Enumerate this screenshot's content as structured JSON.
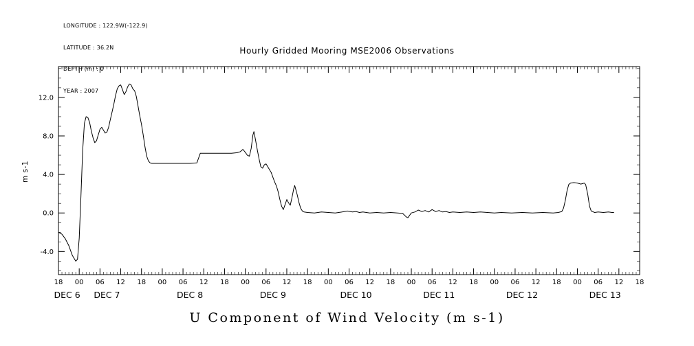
{
  "header": {
    "meta_lines": [
      "LONGITUDE : 122.9W(-122.9)",
      "LATITUDE : 36.2N",
      "DEPTH (m) : 0",
      "YEAR : 2007"
    ],
    "title": "Hourly Gridded Mooring MSE2006 Observations"
  },
  "colors": {
    "line": "#000000",
    "axis": "#000000",
    "background": "#ffffff"
  },
  "chart_data": {
    "type": "line",
    "title": "Hourly Gridded Mooring MSE2006 Observations",
    "xlabel": "U Component of Wind Velocity (m s-1)",
    "ylabel": "m s-1",
    "grid": false,
    "legend": "none",
    "ylim": [
      -6.4,
      15.2
    ],
    "yticks": [
      -4,
      0,
      4,
      8,
      12
    ],
    "ytick_labels": [
      "-4.0",
      "0.0",
      "4.0",
      "8.0",
      "12.0"
    ],
    "y_minor_tick_interval": 1,
    "x_range_hours": [
      0,
      168
    ],
    "x_tick_interval_hours": 6,
    "x_minor_tick_interval_hours": 1,
    "hour_tick_labels": [
      "18",
      "00",
      "06",
      "12",
      "18",
      "00",
      "06",
      "12",
      "18",
      "00",
      "06",
      "12",
      "18",
      "00",
      "06",
      "12",
      "18",
      "00",
      "06",
      "12",
      "18",
      "00",
      "06",
      "12",
      "18",
      "00",
      "06",
      "12",
      "18"
    ],
    "day_labels": [
      {
        "label": "DEC 6",
        "t": 2.5
      },
      {
        "label": "DEC 7",
        "t": 14
      },
      {
        "label": "DEC 8",
        "t": 38
      },
      {
        "label": "DEC 9",
        "t": 62
      },
      {
        "label": "DEC 10",
        "t": 86
      },
      {
        "label": "DEC 11",
        "t": 110
      },
      {
        "label": "DEC 12",
        "t": 134
      },
      {
        "label": "DEC 13",
        "t": 158
      }
    ],
    "series": [
      {
        "name": "U component of wind velocity (m s-1)",
        "points": [
          [
            0,
            -2.0
          ],
          [
            1,
            -2.2
          ],
          [
            2,
            -2.7
          ],
          [
            3,
            -3.4
          ],
          [
            4,
            -4.4
          ],
          [
            5,
            -5.0
          ],
          [
            5.5,
            -4.8
          ],
          [
            6,
            -2.6
          ],
          [
            6.5,
            1.8
          ],
          [
            7,
            6.5
          ],
          [
            7.5,
            9.3
          ],
          [
            8,
            10.0
          ],
          [
            8.5,
            9.9
          ],
          [
            9,
            9.4
          ],
          [
            9.5,
            8.5
          ],
          [
            10,
            7.8
          ],
          [
            10.5,
            7.3
          ],
          [
            11,
            7.5
          ],
          [
            11.5,
            8.1
          ],
          [
            12,
            8.7
          ],
          [
            12.5,
            8.9
          ],
          [
            13,
            8.6
          ],
          [
            13.5,
            8.3
          ],
          [
            14,
            8.4
          ],
          [
            14.5,
            8.9
          ],
          [
            15,
            9.7
          ],
          [
            15.5,
            10.5
          ],
          [
            16,
            11.3
          ],
          [
            16.5,
            12.2
          ],
          [
            17,
            12.9
          ],
          [
            17.5,
            13.2
          ],
          [
            18,
            13.3
          ],
          [
            18.5,
            12.8
          ],
          [
            19,
            12.3
          ],
          [
            19.5,
            12.6
          ],
          [
            20,
            13.1
          ],
          [
            20.5,
            13.4
          ],
          [
            21,
            13.3
          ],
          [
            21.5,
            12.9
          ],
          [
            22,
            12.7
          ],
          [
            22.5,
            12.1
          ],
          [
            23,
            11.1
          ],
          [
            23.5,
            10.1
          ],
          [
            24,
            9.2
          ],
          [
            24.5,
            8.1
          ],
          [
            25,
            6.9
          ],
          [
            25.5,
            5.9
          ],
          [
            26,
            5.4
          ],
          [
            26.5,
            5.2
          ],
          [
            27,
            5.15
          ],
          [
            30,
            5.15
          ],
          [
            34,
            5.15
          ],
          [
            38,
            5.15
          ],
          [
            40,
            5.2
          ],
          [
            40.5,
            5.7
          ],
          [
            41,
            6.2
          ],
          [
            42,
            6.2
          ],
          [
            46,
            6.2
          ],
          [
            50,
            6.2
          ],
          [
            51.5,
            6.25
          ],
          [
            52.5,
            6.35
          ],
          [
            53.3,
            6.6
          ],
          [
            54,
            6.3
          ],
          [
            54.6,
            6.0
          ],
          [
            55.2,
            5.9
          ],
          [
            55.7,
            6.7
          ],
          [
            56.2,
            8.1
          ],
          [
            56.5,
            8.45
          ],
          [
            57,
            7.5
          ],
          [
            57.5,
            6.5
          ],
          [
            58,
            5.6
          ],
          [
            58.5,
            4.8
          ],
          [
            59,
            4.65
          ],
          [
            59.5,
            5.0
          ],
          [
            60,
            5.1
          ],
          [
            60.5,
            4.8
          ],
          [
            61,
            4.5
          ],
          [
            61.5,
            4.2
          ],
          [
            62,
            3.7
          ],
          [
            62.5,
            3.2
          ],
          [
            63,
            2.8
          ],
          [
            63.5,
            2.2
          ],
          [
            64,
            1.4
          ],
          [
            64.5,
            0.7
          ],
          [
            65,
            0.35
          ],
          [
            65.5,
            0.85
          ],
          [
            66,
            1.4
          ],
          [
            66.5,
            1.05
          ],
          [
            67,
            0.8
          ],
          [
            67.5,
            1.6
          ],
          [
            68,
            2.5
          ],
          [
            68.3,
            2.85
          ],
          [
            69,
            1.9
          ],
          [
            69.5,
            1.1
          ],
          [
            70,
            0.5
          ],
          [
            70.5,
            0.2
          ],
          [
            71,
            0.1
          ],
          [
            72,
            0.05
          ],
          [
            74,
            0
          ],
          [
            76,
            0.1
          ],
          [
            78,
            0.05
          ],
          [
            80,
            0
          ],
          [
            82,
            0.1
          ],
          [
            83.5,
            0.2
          ],
          [
            85,
            0.1
          ],
          [
            86,
            0.15
          ],
          [
            87,
            0.05
          ],
          [
            88,
            0.1
          ],
          [
            90,
            0
          ],
          [
            92,
            0.05
          ],
          [
            94,
            0
          ],
          [
            96,
            0.05
          ],
          [
            98,
            0
          ],
          [
            99.5,
            -0.05
          ],
          [
            100.5,
            -0.4
          ],
          [
            101,
            -0.5
          ],
          [
            101.5,
            -0.25
          ],
          [
            102,
            0
          ],
          [
            103,
            0.1
          ],
          [
            104,
            0.3
          ],
          [
            105,
            0.15
          ],
          [
            106,
            0.25
          ],
          [
            107,
            0.1
          ],
          [
            108,
            0.35
          ],
          [
            109,
            0.15
          ],
          [
            110,
            0.25
          ],
          [
            111,
            0.1
          ],
          [
            112,
            0.15
          ],
          [
            113,
            0.05
          ],
          [
            114,
            0.1
          ],
          [
            116,
            0.05
          ],
          [
            118,
            0.1
          ],
          [
            120,
            0.05
          ],
          [
            122,
            0.1
          ],
          [
            124,
            0.05
          ],
          [
            126,
            0
          ],
          [
            128,
            0.05
          ],
          [
            131,
            0
          ],
          [
            134,
            0.05
          ],
          [
            137,
            0
          ],
          [
            140,
            0.05
          ],
          [
            143,
            0
          ],
          [
            144.5,
            0.05
          ],
          [
            145.5,
            0.15
          ],
          [
            146,
            0.5
          ],
          [
            146.5,
            1.3
          ],
          [
            147,
            2.3
          ],
          [
            147.5,
            2.95
          ],
          [
            148,
            3.1
          ],
          [
            149,
            3.15
          ],
          [
            150,
            3.1
          ],
          [
            151,
            3.0
          ],
          [
            152,
            3.1
          ],
          [
            152.4,
            2.95
          ],
          [
            153,
            1.9
          ],
          [
            153.5,
            0.7
          ],
          [
            154,
            0.2
          ],
          [
            155,
            0.05
          ],
          [
            156,
            0.1
          ],
          [
            157.5,
            0.05
          ],
          [
            159,
            0.1
          ],
          [
            160,
            0.05
          ],
          [
            160.5,
            0.05
          ]
        ]
      }
    ]
  }
}
